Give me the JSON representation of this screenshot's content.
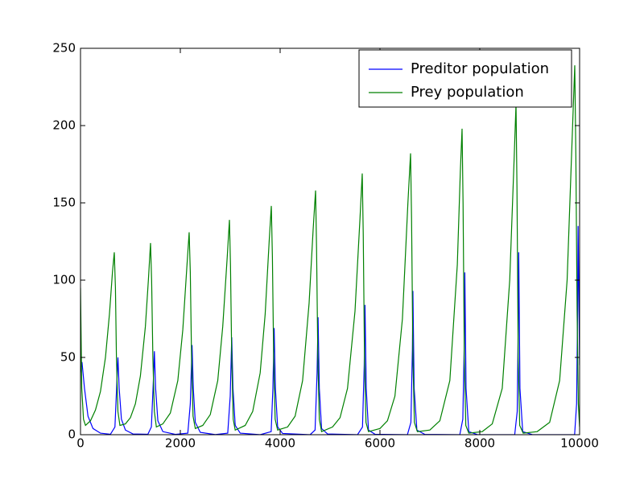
{
  "chart_data": {
    "type": "line",
    "xlim": [
      0,
      10000
    ],
    "xticks": [
      0,
      2000,
      4000,
      6000,
      8000,
      10000
    ],
    "ylim": [
      0,
      250
    ],
    "yticks": [
      0,
      50,
      100,
      150,
      200,
      250
    ],
    "grid": false,
    "legend": "upper right",
    "series": [
      {
        "name": "Preditor population",
        "color": "#0000ff",
        "x": [
          0,
          30,
          80,
          150,
          250,
          400,
          600,
          690,
          730,
          750,
          775,
          820,
          900,
          1050,
          1350,
          1420,
          1460,
          1480,
          1505,
          1550,
          1650,
          1900,
          2150,
          2200,
          2235,
          2260,
          2300,
          2400,
          2700,
          2950,
          3000,
          3030,
          3055,
          3100,
          3200,
          3600,
          3820,
          3855,
          3880,
          3905,
          3950,
          4050,
          4600,
          4700,
          4740,
          4760,
          4785,
          4830,
          4950,
          5550,
          5650,
          5685,
          5700,
          5725,
          5770,
          5900,
          6550,
          6620,
          6650,
          6660,
          6685,
          6740,
          6900,
          7600,
          7660,
          7690,
          7700,
          7725,
          7780,
          7950,
          8700,
          8750,
          8770,
          8780,
          8805,
          8860,
          9050,
          9900,
          9940,
          9960,
          9970,
          9985,
          10000
        ],
        "values": [
          40,
          47,
          30,
          12,
          4,
          1,
          0.3,
          5,
          35,
          50,
          30,
          10,
          3,
          0.5,
          0.3,
          5,
          35,
          54,
          30,
          9,
          2,
          0.2,
          1,
          20,
          58,
          30,
          8,
          1.5,
          0.1,
          1,
          25,
          63,
          30,
          6,
          1,
          0,
          2,
          30,
          69,
          30,
          5,
          0.8,
          0,
          3,
          40,
          76,
          30,
          4,
          0.5,
          0,
          5,
          45,
          84,
          30,
          3,
          0.3,
          0,
          8,
          55,
          93,
          30,
          3,
          0.2,
          0,
          10,
          60,
          105,
          30,
          2,
          0.1,
          0,
          15,
          70,
          118,
          30,
          2,
          0.1,
          0,
          20,
          80,
          135,
          90,
          45
        ]
      },
      {
        "name": "Prey population",
        "color": "#008000",
        "x": [
          0,
          25,
          60,
          100,
          200,
          300,
          400,
          500,
          580,
          640,
          677,
          700,
          720,
          750,
          790,
          900,
          1000,
          1100,
          1200,
          1300,
          1360,
          1403,
          1425,
          1450,
          1480,
          1520,
          1650,
          1800,
          1950,
          2050,
          2130,
          2177,
          2200,
          2225,
          2255,
          2300,
          2450,
          2600,
          2750,
          2850,
          2940,
          2984,
          3005,
          3030,
          3060,
          3100,
          3300,
          3450,
          3600,
          3700,
          3780,
          3823,
          3845,
          3870,
          3900,
          3950,
          4150,
          4300,
          4450,
          4580,
          4660,
          4710,
          4730,
          4755,
          4785,
          4830,
          5050,
          5200,
          5350,
          5500,
          5600,
          5645,
          5665,
          5690,
          5720,
          5770,
          6000,
          6150,
          6300,
          6450,
          6560,
          6613,
          6633,
          6660,
          6690,
          6750,
          7000,
          7200,
          7400,
          7550,
          7610,
          7645,
          7665,
          7690,
          7720,
          7780,
          8050,
          8250,
          8450,
          8600,
          8690,
          8726,
          8745,
          8770,
          8800,
          8870,
          9150,
          9400,
          9600,
          9750,
          9860,
          9903,
          9925,
          9950,
          9975,
          10000
        ],
        "values": [
          95,
          30,
          10,
          6,
          9,
          16,
          28,
          50,
          78,
          105,
          118,
          95,
          50,
          15,
          6,
          7,
          11,
          20,
          38,
          70,
          100,
          124,
          100,
          50,
          15,
          5,
          7,
          14,
          35,
          68,
          108,
          131,
          105,
          50,
          12,
          4,
          6,
          13,
          35,
          70,
          115,
          139,
          110,
          50,
          10,
          3,
          6,
          15,
          40,
          78,
          125,
          148,
          115,
          50,
          10,
          3,
          5,
          12,
          35,
          85,
          132,
          158,
          120,
          50,
          10,
          2,
          5,
          11,
          30,
          80,
          140,
          169,
          130,
          50,
          8,
          2,
          4,
          9,
          25,
          75,
          150,
          182,
          140,
          50,
          8,
          2,
          3,
          9,
          35,
          110,
          170,
          198,
          150,
          50,
          6,
          1,
          2,
          7,
          30,
          100,
          180,
          214,
          160,
          50,
          6,
          1,
          2,
          8,
          35,
          100,
          200,
          239,
          180,
          80,
          20,
          5
        ]
      }
    ]
  }
}
